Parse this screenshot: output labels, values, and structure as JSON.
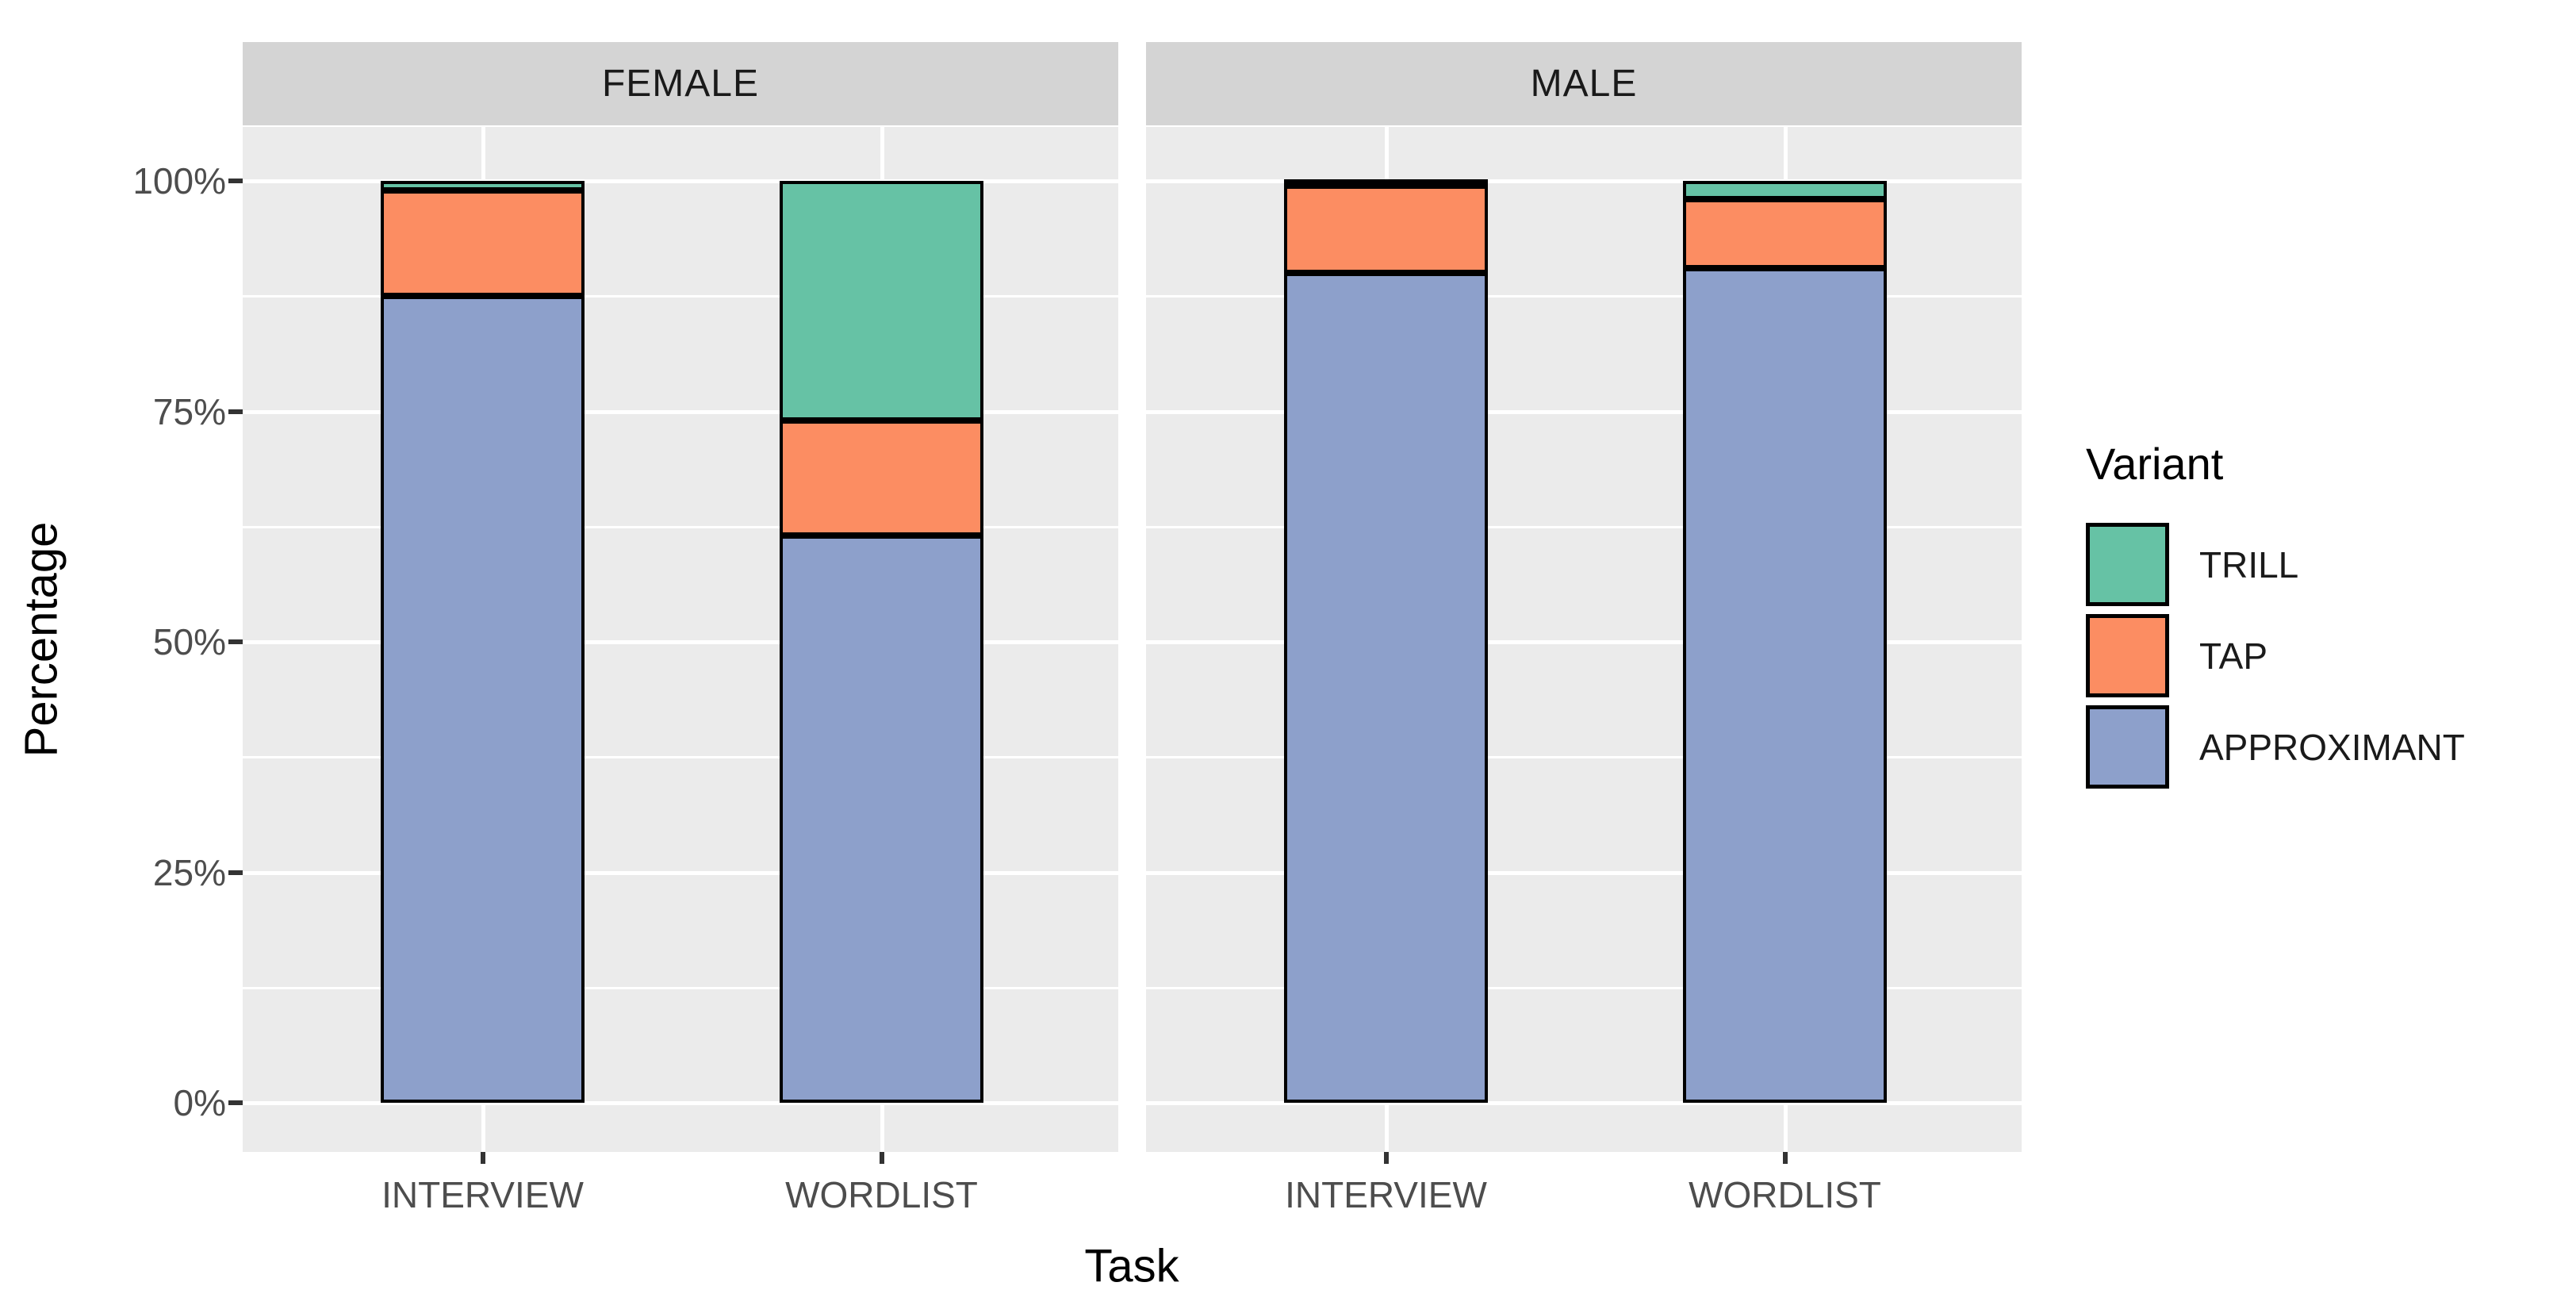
{
  "chart_data": {
    "type": "bar",
    "stacked": true,
    "orientation": "vertical",
    "xlabel": "Task",
    "ylabel": "Percentage",
    "ylim": [
      0,
      100
    ],
    "grid": true,
    "y_ticks": [
      {
        "label": "100%",
        "value": 100
      },
      {
        "label": "75%",
        "value": 75
      },
      {
        "label": "50%",
        "value": 50
      },
      {
        "label": "25%",
        "value": 25
      },
      {
        "label": "0%",
        "value": 0
      }
    ],
    "y_minor_gridlines": [
      87.5,
      62.5,
      37.5,
      12.5
    ],
    "facets": [
      {
        "label": "FEMALE",
        "categories": [
          "INTERVIEW",
          "WORDLIST"
        ],
        "series": [
          {
            "name": "TRILL",
            "values": [
              1.0,
              26.0
            ]
          },
          {
            "name": "TAP",
            "values": [
              11.5,
              12.5
            ]
          },
          {
            "name": "APPROXIMANT",
            "values": [
              87.5,
              61.5
            ]
          }
        ]
      },
      {
        "label": "MALE",
        "categories": [
          "INTERVIEW",
          "WORDLIST"
        ],
        "series": [
          {
            "name": "TRILL",
            "values": [
              0.5,
              2.0
            ]
          },
          {
            "name": "TAP",
            "values": [
              9.5,
              7.5
            ]
          },
          {
            "name": "APPROXIMANT",
            "values": [
              90.0,
              90.5
            ]
          }
        ]
      }
    ],
    "legend": {
      "title": "Variant",
      "position": "right",
      "entries": [
        {
          "label": "TRILL",
          "color": "#66c2a5"
        },
        {
          "label": "TAP",
          "color": "#fc8d62"
        },
        {
          "label": "APPROXIMANT",
          "color": "#8da0cb"
        }
      ]
    },
    "colors": {
      "panel_background": "#ebebeb",
      "strip_background": "#d4d4d4",
      "gridline": "#ffffff",
      "bar_outline": "#000000",
      "tick_text": "#4d4d4d",
      "title_text": "#000000"
    }
  }
}
